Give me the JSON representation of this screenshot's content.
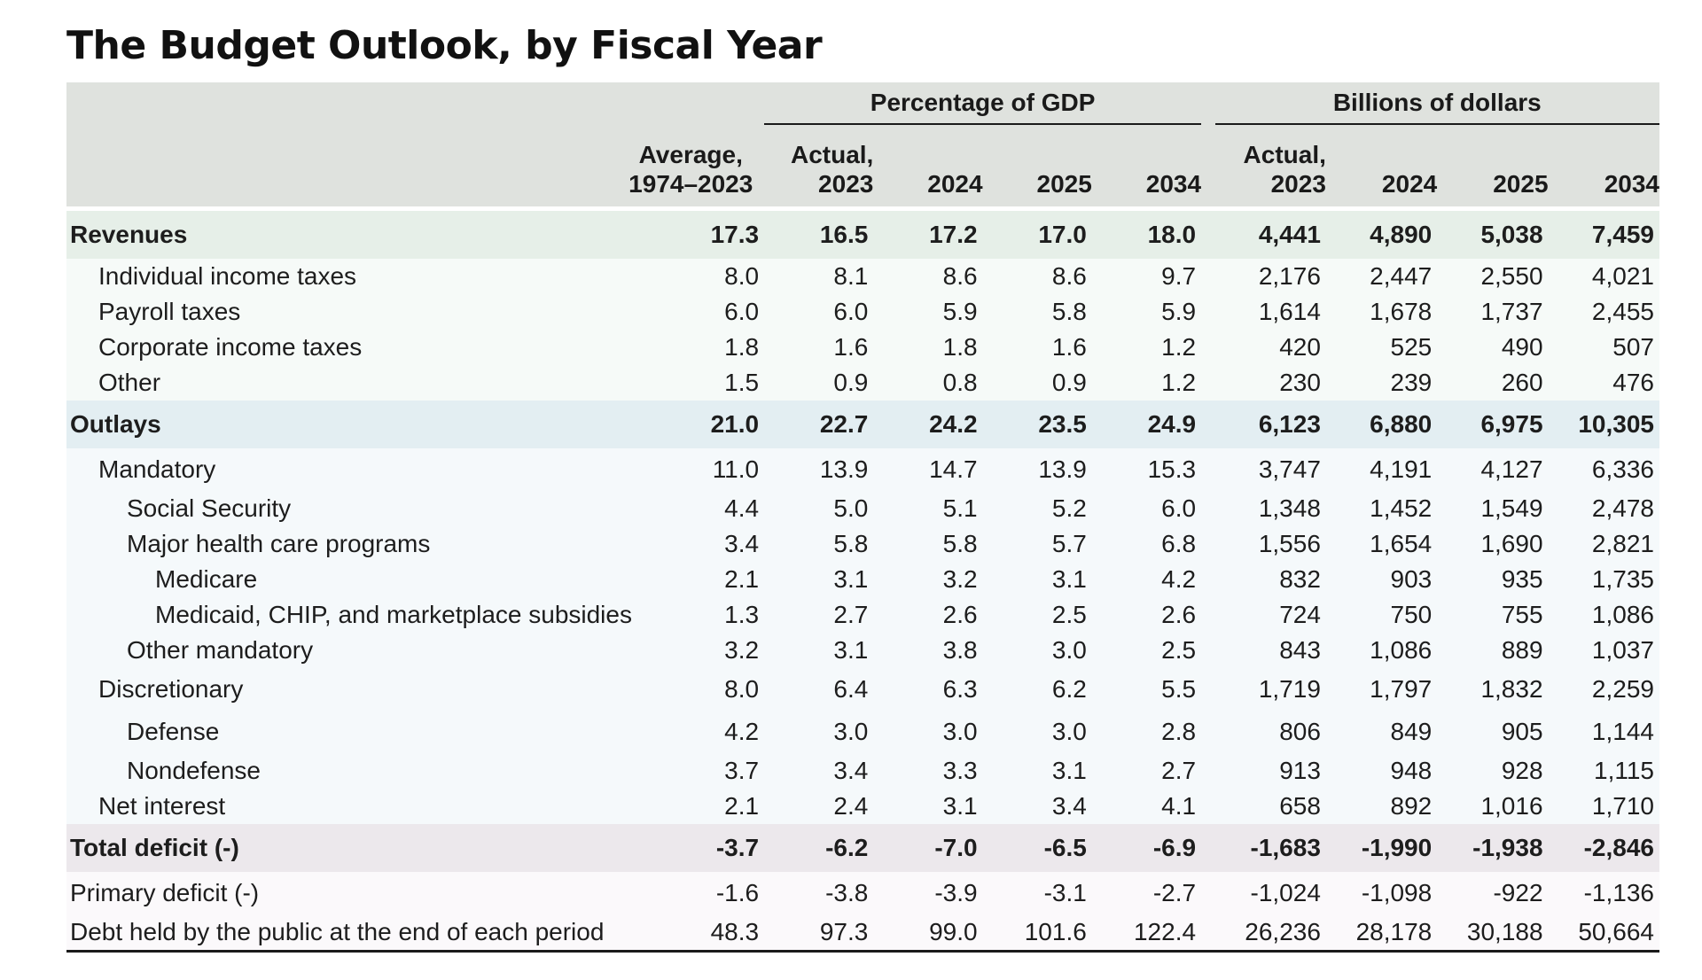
{
  "title": "The Budget Outlook, by Fiscal Year",
  "table": {
    "group_headers": {
      "pct": "Percentage of GDP",
      "bn": "Billions of dollars"
    },
    "col_headers": {
      "avg": [
        "Average,",
        "1974–2023"
      ],
      "pct": [
        [
          "Actual,",
          "2023"
        ],
        [
          "",
          "2024"
        ],
        [
          "",
          "2025"
        ],
        [
          "",
          "2034"
        ]
      ],
      "bn": [
        [
          "Actual,",
          "2023"
        ],
        [
          "",
          "2024"
        ],
        [
          "",
          "2025"
        ],
        [
          "",
          "2034"
        ]
      ]
    },
    "rows": [
      {
        "label": "Revenues",
        "values": [
          "17.3",
          "16.5",
          "17.2",
          "17.0",
          "18.0",
          "4,441",
          "4,890",
          "5,038",
          "7,459"
        ]
      },
      {
        "label": "Individual income taxes",
        "values": [
          "8.0",
          "8.1",
          "8.6",
          "8.6",
          "9.7",
          "2,176",
          "2,447",
          "2,550",
          "4,021"
        ]
      },
      {
        "label": "Payroll taxes",
        "values": [
          "6.0",
          "6.0",
          "5.9",
          "5.8",
          "5.9",
          "1,614",
          "1,678",
          "1,737",
          "2,455"
        ]
      },
      {
        "label": "Corporate income taxes",
        "values": [
          "1.8",
          "1.6",
          "1.8",
          "1.6",
          "1.2",
          "420",
          "525",
          "490",
          "507"
        ]
      },
      {
        "label": "Other",
        "values": [
          "1.5",
          "0.9",
          "0.8",
          "0.9",
          "1.2",
          "230",
          "239",
          "260",
          "476"
        ]
      },
      {
        "label": "Outlays",
        "values": [
          "21.0",
          "22.7",
          "24.2",
          "23.5",
          "24.9",
          "6,123",
          "6,880",
          "6,975",
          "10,305"
        ]
      },
      {
        "label": "Mandatory",
        "values": [
          "11.0",
          "13.9",
          "14.7",
          "13.9",
          "15.3",
          "3,747",
          "4,191",
          "4,127",
          "6,336"
        ]
      },
      {
        "label": "Social Security",
        "values": [
          "4.4",
          "5.0",
          "5.1",
          "5.2",
          "6.0",
          "1,348",
          "1,452",
          "1,549",
          "2,478"
        ]
      },
      {
        "label": "Major health care programs",
        "values": [
          "3.4",
          "5.8",
          "5.8",
          "5.7",
          "6.8",
          "1,556",
          "1,654",
          "1,690",
          "2,821"
        ]
      },
      {
        "label": "Medicare",
        "values": [
          "2.1",
          "3.1",
          "3.2",
          "3.1",
          "4.2",
          "832",
          "903",
          "935",
          "1,735"
        ]
      },
      {
        "label": "Medicaid, CHIP, and marketplace subsidies",
        "values": [
          "1.3",
          "2.7",
          "2.6",
          "2.5",
          "2.6",
          "724",
          "750",
          "755",
          "1,086"
        ]
      },
      {
        "label": "Other mandatory",
        "values": [
          "3.2",
          "3.1",
          "3.8",
          "3.0",
          "2.5",
          "843",
          "1,086",
          "889",
          "1,037"
        ]
      },
      {
        "label": "Discretionary",
        "values": [
          "8.0",
          "6.4",
          "6.3",
          "6.2",
          "5.5",
          "1,719",
          "1,797",
          "1,832",
          "2,259"
        ]
      },
      {
        "label": "Defense",
        "values": [
          "4.2",
          "3.0",
          "3.0",
          "3.0",
          "2.8",
          "806",
          "849",
          "905",
          "1,144"
        ]
      },
      {
        "label": "Nondefense",
        "values": [
          "3.7",
          "3.4",
          "3.3",
          "3.1",
          "2.7",
          "913",
          "948",
          "928",
          "1,115"
        ]
      },
      {
        "label": "Net interest",
        "values": [
          "2.1",
          "2.4",
          "3.1",
          "3.4",
          "4.1",
          "658",
          "892",
          "1,016",
          "1,710"
        ]
      },
      {
        "label": "Total deficit (-)",
        "values": [
          "-3.7",
          "-6.2",
          "-7.0",
          "-6.5",
          "-6.9",
          "-1,683",
          "-1,990",
          "-1,938",
          "-2,846"
        ]
      },
      {
        "label": "Primary deficit (-)",
        "values": [
          "-1.6",
          "-3.8",
          "-3.9",
          "-3.1",
          "-2.7",
          "-1,024",
          "-1,098",
          "-922",
          "-1,136"
        ]
      },
      {
        "label": "Debt held by the public at the end of each period",
        "values": [
          "48.3",
          "97.3",
          "99.0",
          "101.6",
          "122.4",
          "26,236",
          "28,178",
          "30,188",
          "50,664"
        ]
      }
    ]
  }
}
